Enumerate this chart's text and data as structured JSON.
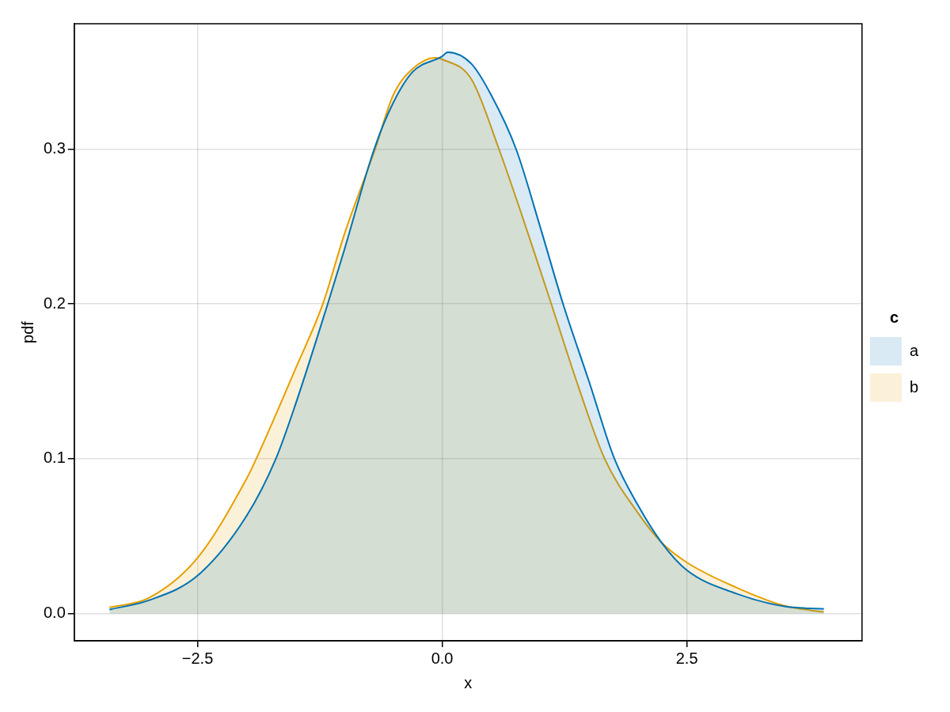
{
  "chart_data": {
    "type": "area",
    "xlabel": "x",
    "ylabel": "pdf",
    "legend_title": "c",
    "legend": "right",
    "grid": true,
    "xlim": [
      -3.76,
      4.29
    ],
    "ylim": [
      -0.0176,
      0.381
    ],
    "xticks": [
      {
        "value": -2.5,
        "label": "−2.5"
      },
      {
        "value": 0,
        "label": "0.0"
      },
      {
        "value": 2.5,
        "label": "2.5"
      }
    ],
    "yticks": [
      {
        "value": 0,
        "label": "0.0"
      },
      {
        "value": 0.1,
        "label": "0.1"
      },
      {
        "value": 0.2,
        "label": "0.2"
      },
      {
        "value": 0.3,
        "label": "0.3"
      }
    ],
    "series": [
      {
        "name": "a",
        "color": "#0072b2",
        "x": [
          -3.4,
          -3.0,
          -2.5,
          -2.0,
          -1.7,
          -1.5,
          -1.17,
          -1.0,
          -0.695,
          -0.5,
          -0.3,
          0,
          0.056,
          0.3,
          0.5,
          0.755,
          1.0,
          1.235,
          1.5,
          1.76,
          2.0,
          2.24,
          2.5,
          3.0,
          3.5,
          3.9
        ],
        "values": [
          0.0026,
          0.0085,
          0.0245,
          0.063,
          0.1,
          0.135,
          0.2,
          0.235,
          0.3,
          0.33,
          0.35,
          0.36,
          0.3626,
          0.355,
          0.335,
          0.3,
          0.25,
          0.2,
          0.15,
          0.1,
          0.07,
          0.046,
          0.028,
          0.013,
          0.0046,
          0.003
        ]
      },
      {
        "name": "b",
        "color": "#e69f00",
        "x": [
          -3.4,
          -3.0,
          -2.5,
          -2.0,
          -1.9,
          -1.5,
          -1.22,
          -1.0,
          -0.686,
          -0.5,
          -0.3,
          -0.07,
          0,
          0.3,
          0.58,
          0.8,
          1.0,
          1.115,
          1.4,
          1.66,
          2.0,
          2.24,
          2.5,
          3.0,
          3.5,
          3.9
        ],
        "values": [
          0.004,
          0.01,
          0.036,
          0.087,
          0.1,
          0.158,
          0.2,
          0.245,
          0.3,
          0.335,
          0.352,
          0.359,
          0.358,
          0.345,
          0.3,
          0.26,
          0.222,
          0.2,
          0.145,
          0.1,
          0.065,
          0.046,
          0.033,
          0.017,
          0.005,
          0.001
        ]
      }
    ]
  }
}
